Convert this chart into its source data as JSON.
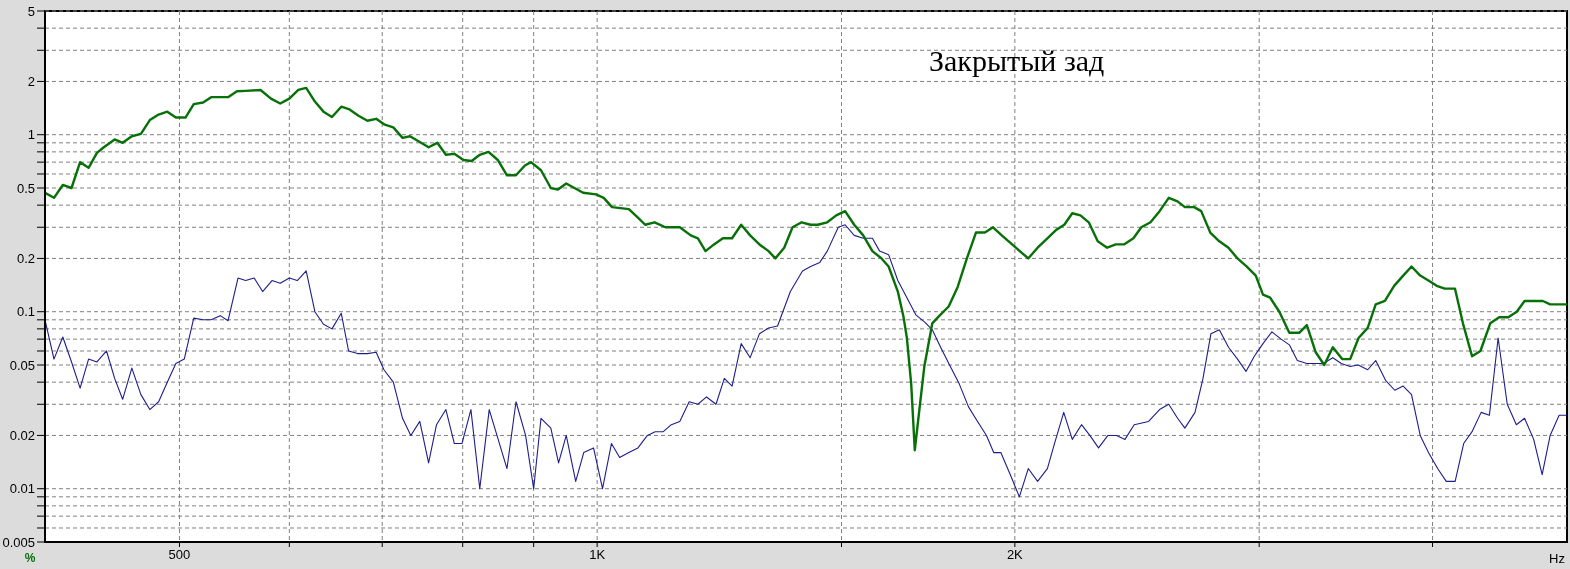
{
  "chart_data": {
    "type": "line",
    "title": "Закрытый зад",
    "xlabel": "Hz",
    "ylabel": "%",
    "log": "xy",
    "grid": true,
    "marker": "none",
    "line_style": "solid",
    "xlim": [
      400,
      5000
    ],
    "ylim": [
      0.005,
      5
    ],
    "xticks": [
      500,
      {
        "value": 600,
        "label": null
      },
      {
        "value": 700,
        "label": null
      },
      {
        "value": 800,
        "label": null
      },
      {
        "value": 900,
        "label": null
      },
      {
        "value": 1000,
        "label": "1K"
      },
      {
        "value": 1500,
        "label": null
      },
      {
        "value": 2000,
        "label": "2K"
      },
      {
        "value": 3000,
        "label": null
      },
      {
        "value": 4000,
        "label": null
      }
    ],
    "yticks": [
      0.005,
      {
        "value": 0.006,
        "label": null
      },
      {
        "value": 0.007,
        "label": null
      },
      {
        "value": 0.008,
        "label": null
      },
      {
        "value": 0.009,
        "label": null
      },
      0.01,
      0.02,
      {
        "value": 0.03,
        "label": null
      },
      {
        "value": 0.04,
        "label": null
      },
      0.05,
      {
        "value": 0.06,
        "label": null
      },
      {
        "value": 0.07,
        "label": null
      },
      {
        "value": 0.08,
        "label": null
      },
      {
        "value": 0.09,
        "label": null
      },
      0.1,
      0.2,
      {
        "value": 0.3,
        "label": null
      },
      {
        "value": 0.4,
        "label": null
      },
      0.5,
      {
        "value": 0.6,
        "label": null
      },
      {
        "value": 0.7,
        "label": null
      },
      {
        "value": 0.8,
        "label": null
      },
      {
        "value": 0.9,
        "label": null
      },
      1,
      2,
      {
        "value": 3,
        "label": null
      },
      {
        "value": 4,
        "label": null
      },
      5
    ],
    "series": [
      {
        "color": "#087008",
        "x": [
          400,
          406,
          412,
          418,
          424,
          430,
          436,
          441,
          449,
          455,
          462,
          469,
          476,
          483,
          490,
          497,
          505,
          512,
          520,
          527,
          542,
          550,
          558,
          572,
          582,
          591,
          600,
          609,
          617,
          626,
          635,
          644,
          654,
          663,
          673,
          683,
          693,
          703,
          713,
          724,
          733,
          745,
          756,
          767,
          778,
          789,
          801,
          812,
          823,
          835,
          848,
          861,
          874,
          887,
          896,
          911,
          926,
          937,
          950,
          963,
          977,
          998,
          1011,
          1025,
          1054,
          1070,
          1083,
          1100,
          1120,
          1147,
          1168,
          1182,
          1197,
          1214,
          1232,
          1251,
          1270,
          1289,
          1309,
          1329,
          1344,
          1364,
          1383,
          1404,
          1425,
          1442,
          1465,
          1487,
          1509,
          1532,
          1555,
          1579,
          1603,
          1622,
          1647,
          1662,
          1672,
          1684,
          1694,
          1707,
          1721,
          1744,
          1765,
          1792,
          1819,
          1847,
          1875,
          1903,
          1929,
          1957,
          1991,
          2045,
          2077,
          2111,
          2142,
          2171,
          2200,
          2230,
          2261,
          2295,
          2331,
          2365,
          2397,
          2435,
          2467,
          2505,
          2543,
          2582,
          2620,
          2652,
          2693,
          2725,
          2766,
          2808,
          2851,
          2894,
          2939,
          2983,
          3019,
          3055,
          3102,
          3154,
          3206,
          3247,
          3295,
          3342,
          3390,
          3443,
          3489,
          3538,
          3592,
          3640,
          3696,
          3753,
          3810,
          3863,
          3919,
          3973,
          4028,
          4082,
          4152,
          4207,
          4271,
          4331,
          4402,
          4468,
          4536,
          4600,
          4660,
          4804,
          4862,
          5000
        ],
        "values": [
          0.47,
          0.44,
          0.52,
          0.5,
          0.7,
          0.65,
          0.79,
          0.85,
          0.94,
          0.9,
          0.98,
          1.01,
          1.21,
          1.3,
          1.35,
          1.25,
          1.25,
          1.49,
          1.52,
          1.63,
          1.63,
          1.76,
          1.77,
          1.79,
          1.6,
          1.5,
          1.6,
          1.79,
          1.84,
          1.54,
          1.35,
          1.26,
          1.44,
          1.39,
          1.28,
          1.2,
          1.23,
          1.14,
          1.1,
          0.96,
          0.98,
          0.91,
          0.85,
          0.9,
          0.77,
          0.78,
          0.72,
          0.71,
          0.77,
          0.8,
          0.72,
          0.59,
          0.59,
          0.67,
          0.7,
          0.63,
          0.5,
          0.49,
          0.53,
          0.5,
          0.47,
          0.46,
          0.44,
          0.39,
          0.38,
          0.34,
          0.31,
          0.32,
          0.3,
          0.3,
          0.27,
          0.26,
          0.22,
          0.24,
          0.26,
          0.26,
          0.31,
          0.27,
          0.24,
          0.22,
          0.2,
          0.23,
          0.3,
          0.32,
          0.31,
          0.31,
          0.32,
          0.35,
          0.37,
          0.31,
          0.27,
          0.22,
          0.2,
          0.18,
          0.13,
          0.095,
          0.071,
          0.039,
          0.0165,
          0.028,
          0.049,
          0.086,
          0.095,
          0.107,
          0.138,
          0.2,
          0.28,
          0.28,
          0.3,
          0.27,
          0.24,
          0.2,
          0.23,
          0.26,
          0.29,
          0.31,
          0.36,
          0.35,
          0.32,
          0.25,
          0.23,
          0.24,
          0.24,
          0.26,
          0.3,
          0.32,
          0.37,
          0.44,
          0.42,
          0.39,
          0.39,
          0.37,
          0.28,
          0.25,
          0.23,
          0.2,
          0.18,
          0.16,
          0.125,
          0.12,
          0.1,
          0.076,
          0.076,
          0.084,
          0.059,
          0.05,
          0.063,
          0.054,
          0.054,
          0.071,
          0.081,
          0.11,
          0.115,
          0.14,
          0.16,
          0.18,
          0.16,
          0.15,
          0.14,
          0.135,
          0.135,
          0.086,
          0.056,
          0.06,
          0.086,
          0.093,
          0.093,
          0.1,
          0.115,
          0.115,
          0.11,
          0.11
        ]
      },
      {
        "color": "#1e1e8c",
        "x": [
          400,
          406,
          412,
          418,
          424,
          430,
          436,
          443,
          449,
          455,
          462,
          469,
          476,
          483,
          490,
          497,
          504,
          512,
          520,
          527,
          535,
          542,
          551,
          558,
          566,
          574,
          583,
          591,
          600,
          608,
          617,
          626,
          635,
          644,
          654,
          662,
          672,
          683,
          693,
          702,
          713,
          724,
          734,
          745,
          756,
          766,
          778,
          789,
          799,
          811,
          823,
          836,
          861,
          874,
          888,
          900,
          911,
          926,
          938,
          950,
          965,
          978,
          994,
          1009,
          1024,
          1038,
          1054,
          1070,
          1087,
          1101,
          1116,
          1131,
          1147,
          1165,
          1182,
          1199,
          1218,
          1235,
          1251,
          1270,
          1289,
          1309,
          1329,
          1349,
          1378,
          1406,
          1425,
          1447,
          1465,
          1492,
          1509,
          1532,
          1555,
          1579,
          1598,
          1622,
          1647,
          1672,
          1697,
          1723,
          1744,
          1770,
          1797,
          1824,
          1852,
          1880,
          1908,
          1931,
          1954,
          1985,
          2015,
          2045,
          2077,
          2111,
          2136,
          2169,
          2200,
          2234,
          2265,
          2298,
          2334,
          2368,
          2401,
          2438,
          2497,
          2543,
          2582,
          2620,
          2652,
          2697,
          2733,
          2769,
          2808,
          2851,
          2894,
          2935,
          2976,
          3019,
          3064,
          3111,
          3154,
          3196,
          3247,
          3286,
          3336,
          3390,
          3438,
          3489,
          3536,
          3592,
          3640,
          3700,
          3757,
          3810,
          3863,
          3919,
          3973,
          4034,
          4092,
          4153,
          4212,
          4271,
          4336,
          4396,
          4460,
          4528,
          4597,
          4660,
          4731,
          4798,
          4862,
          4935,
          5000
        ],
        "values": [
          0.09,
          0.054,
          0.072,
          0.052,
          0.037,
          0.054,
          0.052,
          0.06,
          0.042,
          0.032,
          0.048,
          0.034,
          0.028,
          0.031,
          0.04,
          0.051,
          0.054,
          0.092,
          0.09,
          0.09,
          0.095,
          0.089,
          0.155,
          0.15,
          0.155,
          0.13,
          0.15,
          0.145,
          0.155,
          0.15,
          0.17,
          0.1,
          0.085,
          0.08,
          0.098,
          0.06,
          0.058,
          0.058,
          0.059,
          0.047,
          0.04,
          0.025,
          0.02,
          0.024,
          0.014,
          0.023,
          0.028,
          0.018,
          0.018,
          0.028,
          0.01,
          0.028,
          0.013,
          0.031,
          0.02,
          0.01,
          0.025,
          0.022,
          0.014,
          0.02,
          0.011,
          0.016,
          0.017,
          0.01,
          0.018,
          0.015,
          0.016,
          0.017,
          0.02,
          0.021,
          0.021,
          0.023,
          0.024,
          0.031,
          0.03,
          0.033,
          0.03,
          0.042,
          0.038,
          0.066,
          0.055,
          0.075,
          0.081,
          0.083,
          0.13,
          0.17,
          0.18,
          0.19,
          0.22,
          0.3,
          0.31,
          0.27,
          0.26,
          0.26,
          0.22,
          0.21,
          0.15,
          0.12,
          0.096,
          0.087,
          0.079,
          0.062,
          0.049,
          0.039,
          0.029,
          0.024,
          0.02,
          0.016,
          0.016,
          0.012,
          0.009,
          0.013,
          0.011,
          0.013,
          0.018,
          0.027,
          0.019,
          0.023,
          0.02,
          0.017,
          0.02,
          0.02,
          0.019,
          0.023,
          0.024,
          0.028,
          0.03,
          0.025,
          0.022,
          0.027,
          0.042,
          0.075,
          0.079,
          0.063,
          0.054,
          0.046,
          0.056,
          0.066,
          0.077,
          0.07,
          0.065,
          0.053,
          0.051,
          0.051,
          0.051,
          0.055,
          0.051,
          0.049,
          0.05,
          0.047,
          0.053,
          0.041,
          0.036,
          0.038,
          0.034,
          0.02,
          0.016,
          0.013,
          0.011,
          0.011,
          0.018,
          0.021,
          0.027,
          0.026,
          0.071,
          0.03,
          0.023,
          0.025,
          0.019,
          0.012,
          0.02,
          0.026,
          0.026
        ]
      }
    ]
  }
}
